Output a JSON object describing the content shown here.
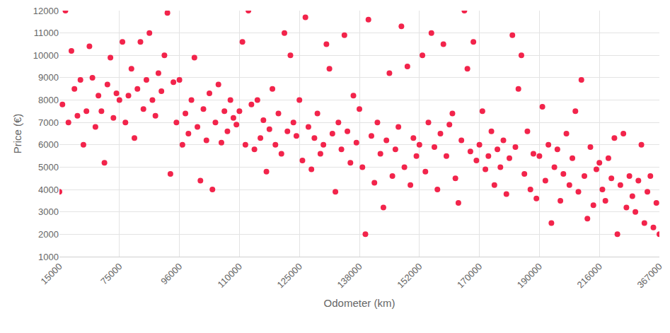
{
  "chart_data": {
    "type": "scatter",
    "x_label": "Odometer (km)",
    "y_label": "Price (€)",
    "color": "#f2244b",
    "marker": "circle",
    "grid": true,
    "ylim": [
      1000,
      12000
    ],
    "yticks": [
      1000,
      2000,
      3000,
      4000,
      5000,
      6000,
      7000,
      8000,
      9000,
      10000,
      11000,
      12000
    ],
    "categories": [
      15000,
      null,
      null,
      null,
      null,
      null,
      null,
      null,
      null,
      null,
      null,
      null,
      null,
      null,
      null,
      null,
      null,
      null,
      null,
      null,
      75000,
      null,
      null,
      null,
      null,
      null,
      null,
      null,
      null,
      null,
      null,
      null,
      null,
      null,
      null,
      null,
      null,
      null,
      null,
      null,
      96000,
      null,
      null,
      null,
      null,
      null,
      null,
      null,
      null,
      null,
      null,
      null,
      null,
      null,
      null,
      null,
      null,
      null,
      null,
      null,
      110000,
      null,
      null,
      null,
      null,
      null,
      null,
      null,
      null,
      null,
      null,
      null,
      null,
      null,
      null,
      null,
      null,
      null,
      null,
      null,
      125000,
      null,
      null,
      null,
      null,
      null,
      null,
      null,
      null,
      null,
      null,
      null,
      null,
      null,
      null,
      null,
      null,
      null,
      null,
      null,
      138000,
      null,
      null,
      null,
      null,
      null,
      null,
      null,
      null,
      null,
      null,
      null,
      null,
      null,
      null,
      null,
      null,
      null,
      null,
      null,
      152000,
      null,
      null,
      null,
      null,
      null,
      null,
      null,
      null,
      null,
      null,
      null,
      null,
      null,
      null,
      null,
      null,
      null,
      null,
      null,
      170000,
      null,
      null,
      null,
      null,
      null,
      null,
      null,
      null,
      null,
      null,
      null,
      null,
      null,
      null,
      null,
      null,
      null,
      null,
      null,
      190000,
      null,
      null,
      null,
      null,
      null,
      null,
      null,
      null,
      null,
      null,
      null,
      null,
      null,
      null,
      null,
      null,
      null,
      null,
      null,
      216000,
      null,
      null,
      null,
      null,
      null,
      null,
      null,
      null,
      null,
      null,
      null,
      null,
      null,
      null,
      null,
      null,
      null,
      null,
      null,
      367000
    ],
    "values": [
      3900,
      7800,
      12000,
      7000,
      10200,
      8500,
      7300,
      8900,
      6000,
      7500,
      10400,
      9000,
      6800,
      8200,
      7500,
      5200,
      8700,
      9900,
      7200,
      8300,
      8000,
      10600,
      7000,
      8200,
      9400,
      6300,
      8500,
      10600,
      7600,
      8900,
      11000,
      8000,
      7300,
      9200,
      8400,
      10000,
      11900,
      4700,
      8800,
      7000,
      8900,
      6000,
      7400,
      6500,
      8000,
      9900,
      6800,
      4400,
      7600,
      6200,
      8300,
      4000,
      7000,
      8700,
      6100,
      7500,
      6600,
      8000,
      7200,
      6900,
      7500,
      10600,
      6000,
      12000,
      7800,
      5800,
      8000,
      6300,
      7100,
      4800,
      6700,
      8500,
      6000,
      7400,
      5600,
      11000,
      6600,
      10000,
      7000,
      6400,
      8000,
      5300,
      11700,
      6800,
      4900,
      6300,
      7400,
      5600,
      6000,
      10500,
      9400,
      6500,
      3900,
      7000,
      5800,
      10900,
      6600,
      5200,
      8200,
      6100,
      7600,
      5000,
      2000,
      11600,
      6400,
      4300,
      7000,
      5600,
      3200,
      6200,
      9200,
      4600,
      5800,
      6800,
      11300,
      5000,
      9500,
      4200,
      6300,
      5500,
      6000,
      10000,
      4800,
      7000,
      11000,
      5900,
      4000,
      6500,
      10500,
      5500,
      6900,
      7400,
      4500,
      3400,
      6200,
      12000,
      9400,
      5700,
      10600,
      5300,
      6000,
      7500,
      4900,
      5500,
      6600,
      4200,
      5800,
      5000,
      6200,
      3800,
      5400,
      10900,
      5900,
      8500,
      10000,
      4700,
      6600,
      4000,
      5600,
      3600,
      5500,
      7700,
      4400,
      6000,
      2500,
      5000,
      5800,
      3500,
      4700,
      6500,
      4200,
      5400,
      7500,
      3900,
      8900,
      4600,
      2700,
      5900,
      3300,
      4900,
      5200,
      4000,
      3500,
      5400,
      4500,
      6300,
      2000,
      4200,
      6500,
      3200,
      4600,
      3700,
      3000,
      4400,
      6000,
      2500,
      3900,
      4600,
      2300,
      3400,
      2000
    ]
  }
}
